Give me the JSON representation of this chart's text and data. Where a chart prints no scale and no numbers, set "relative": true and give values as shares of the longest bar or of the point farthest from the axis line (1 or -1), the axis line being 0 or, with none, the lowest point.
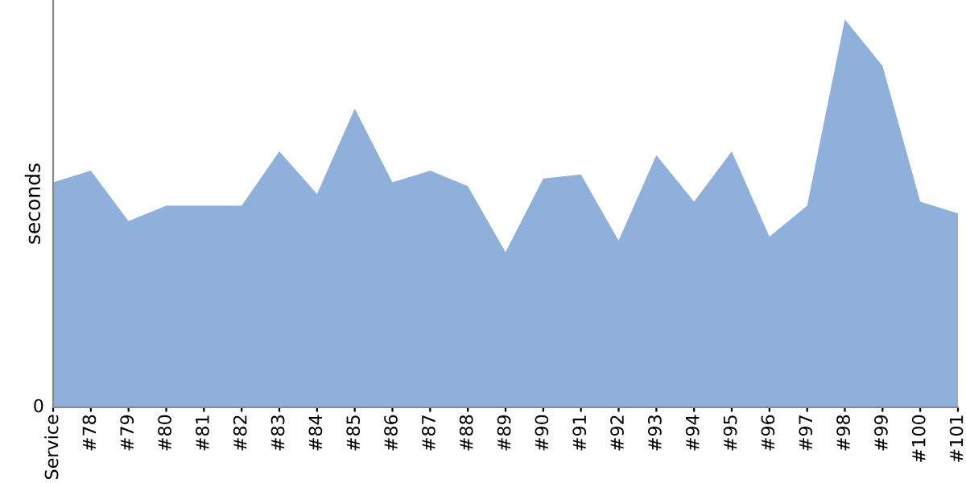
{
  "chart_data": {
    "type": "area",
    "ylabel": "seconds",
    "relative": true,
    "grid": false,
    "legend": false,
    "categories": [
      "Service",
      "#78",
      "#79",
      "#80",
      "#81",
      "#82",
      "#83",
      "#84",
      "#85",
      "#86",
      "#87",
      "#88",
      "#89",
      "#90",
      "#91",
      "#92",
      "#93",
      "#94",
      "#95",
      "#96",
      "#97",
      "#98",
      "#99",
      "#100",
      "#101"
    ],
    "series": [
      {
        "color": "#8fb0da",
        "values": [
          0.58,
          0.61,
          0.48,
          0.52,
          0.52,
          0.52,
          0.66,
          0.55,
          0.77,
          0.58,
          0.61,
          0.57,
          0.4,
          0.59,
          0.6,
          0.43,
          0.65,
          0.53,
          0.66,
          0.44,
          0.52,
          1,
          0.88,
          0.53,
          0.5
        ]
      }
    ],
    "annotations": [
      "0"
    ]
  }
}
